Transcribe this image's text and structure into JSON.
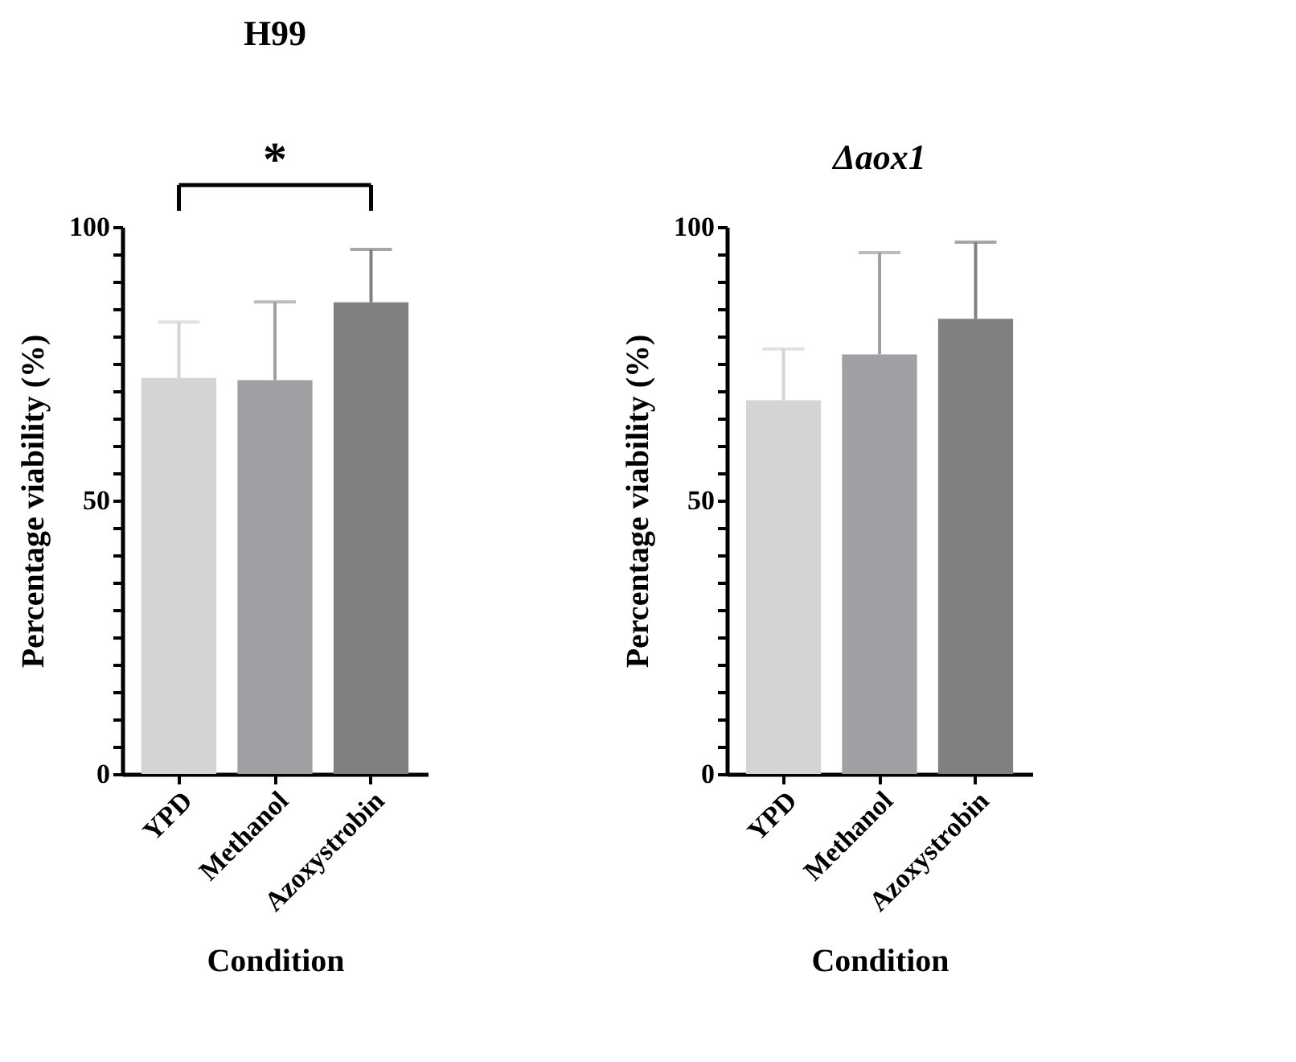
{
  "chart_data": [
    {
      "type": "bar",
      "title": "H99",
      "xlabel": "Condition",
      "ylabel": "Percentage viability (%)",
      "categories": [
        "YPD",
        "Methanol",
        "Azoxystrobin"
      ],
      "values": [
        72.4,
        72.0,
        86.2
      ],
      "colors": [
        "#d4d4d4",
        "#a0a0a4",
        "#808080"
      ],
      "errors": [
        [
          72.4,
          82.6
        ],
        [
          72.0,
          86.3
        ],
        [
          86.2,
          95.9
        ]
      ],
      "ylim": [
        0,
        100
      ],
      "yticks": [
        0,
        {
          "value": 5,
          "label": null
        },
        {
          "value": 10,
          "label": null
        },
        {
          "value": 15,
          "label": null
        },
        {
          "value": 20,
          "label": null
        },
        {
          "value": 25,
          "label": null
        },
        {
          "value": 30,
          "label": null
        },
        {
          "value": 35,
          "label": null
        },
        {
          "value": 40,
          "label": null
        },
        {
          "value": 45,
          "label": null
        },
        50,
        {
          "value": 55,
          "label": null
        },
        {
          "value": 60,
          "label": null
        },
        {
          "value": 65,
          "label": null
        },
        {
          "value": 70,
          "label": null
        },
        {
          "value": 75,
          "label": null
        },
        {
          "value": 80,
          "label": null
        },
        {
          "value": 85,
          "label": null
        },
        {
          "value": 90,
          "label": null
        },
        {
          "value": 95,
          "label": null
        },
        100
      ],
      "annotations": [
        "*"
      ],
      "grid": false
    },
    {
      "type": "bar",
      "title": "Δaox1",
      "xlabel": "Condition",
      "ylabel": "Percentage viability (%)",
      "categories": [
        "YPD",
        "Methanol",
        "Azoxystrobin"
      ],
      "values": [
        68.3,
        76.7,
        83.2
      ],
      "colors": [
        "#d4d4d4",
        "#a0a0a4",
        "#808080"
      ],
      "errors": [
        [
          68.3,
          77.7
        ],
        [
          76.7,
          95.3
        ],
        [
          83.2,
          97.2
        ]
      ],
      "ylim": [
        0,
        100
      ],
      "yticks": [
        0,
        {
          "value": 5,
          "label": null
        },
        {
          "value": 10,
          "label": null
        },
        {
          "value": 15,
          "label": null
        },
        {
          "value": 20,
          "label": null
        },
        {
          "value": 25,
          "label": null
        },
        {
          "value": 30,
          "label": null
        },
        {
          "value": 35,
          "label": null
        },
        {
          "value": 40,
          "label": null
        },
        {
          "value": 45,
          "label": null
        },
        50,
        {
          "value": 55,
          "label": null
        },
        {
          "value": 60,
          "label": null
        },
        {
          "value": 65,
          "label": null
        },
        {
          "value": 70,
          "label": null
        },
        {
          "value": 75,
          "label": null
        },
        {
          "value": 80,
          "label": null
        },
        {
          "value": 85,
          "label": null
        },
        {
          "value": 90,
          "label": null
        },
        {
          "value": 95,
          "label": null
        },
        100
      ],
      "grid": false
    }
  ]
}
